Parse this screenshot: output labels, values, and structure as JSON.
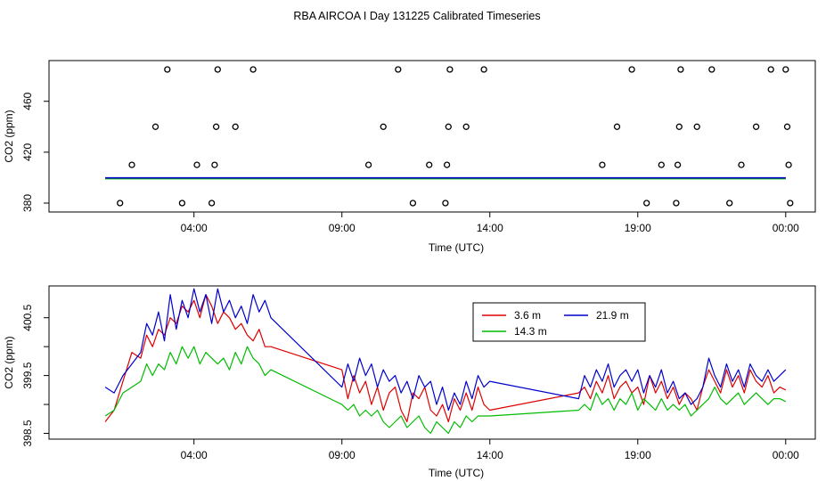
{
  "title": "RBA AIRCOA I  Day 131225  Calibrated Timeseries",
  "chart_data": [
    {
      "type": "scatter+line",
      "xlabel": "Time (UTC)",
      "ylabel": "CO2 (ppm)",
      "xticks": [
        4,
        9,
        14,
        19,
        24
      ],
      "xtick_labels": [
        "04:00",
        "09:00",
        "14:00",
        "19:00",
        "00:00"
      ],
      "xlim": [
        -0.9,
        25.0
      ],
      "yticks": [
        380,
        420,
        460
      ],
      "ytick_labels": [
        "380",
        "420",
        "460"
      ],
      "ylim": [
        373,
        492
      ],
      "points": [
        {
          "x": 1.5,
          "y": 380
        },
        {
          "x": 1.9,
          "y": 410
        },
        {
          "x": 2.7,
          "y": 440
        },
        {
          "x": 3.1,
          "y": 485
        },
        {
          "x": 3.6,
          "y": 380
        },
        {
          "x": 4.1,
          "y": 410
        },
        {
          "x": 4.6,
          "y": 380
        },
        {
          "x": 4.7,
          "y": 410
        },
        {
          "x": 4.75,
          "y": 440
        },
        {
          "x": 4.8,
          "y": 485
        },
        {
          "x": 5.4,
          "y": 440
        },
        {
          "x": 6.0,
          "y": 485
        },
        {
          "x": 9.9,
          "y": 410
        },
        {
          "x": 10.4,
          "y": 440
        },
        {
          "x": 10.9,
          "y": 485
        },
        {
          "x": 11.4,
          "y": 380
        },
        {
          "x": 11.95,
          "y": 410
        },
        {
          "x": 12.5,
          "y": 380
        },
        {
          "x": 12.55,
          "y": 410
        },
        {
          "x": 12.6,
          "y": 440
        },
        {
          "x": 12.65,
          "y": 485
        },
        {
          "x": 13.2,
          "y": 440
        },
        {
          "x": 13.8,
          "y": 485
        },
        {
          "x": 17.8,
          "y": 410
        },
        {
          "x": 18.3,
          "y": 440
        },
        {
          "x": 18.8,
          "y": 485
        },
        {
          "x": 19.3,
          "y": 380
        },
        {
          "x": 19.8,
          "y": 410
        },
        {
          "x": 20.3,
          "y": 380
        },
        {
          "x": 20.35,
          "y": 410
        },
        {
          "x": 20.4,
          "y": 440
        },
        {
          "x": 20.45,
          "y": 485
        },
        {
          "x": 21.0,
          "y": 440
        },
        {
          "x": 21.5,
          "y": 485
        },
        {
          "x": 22.1,
          "y": 380
        },
        {
          "x": 22.5,
          "y": 410
        },
        {
          "x": 23.0,
          "y": 440
        },
        {
          "x": 23.5,
          "y": 485
        },
        {
          "x": 24.0,
          "y": 485
        },
        {
          "x": 24.05,
          "y": 440
        },
        {
          "x": 24.1,
          "y": 410
        },
        {
          "x": 24.15,
          "y": 380
        }
      ],
      "series": [
        {
          "name": "3.6 m",
          "color": "#dd0000",
          "x": [
            1.0,
            24.0
          ],
          "values": [
            399.5,
            399.5
          ]
        },
        {
          "name": "14.3 m",
          "color": "#00bb00",
          "x": [
            1.0,
            24.0
          ],
          "values": [
            399.2,
            399.2
          ]
        },
        {
          "name": "21.9 m",
          "color": "#0000cc",
          "x": [
            1.0,
            24.0
          ],
          "values": [
            399.8,
            399.8
          ]
        }
      ]
    },
    {
      "type": "line",
      "xlabel": "Time (UTC)",
      "ylabel": "CO2 (ppm)",
      "xticks": [
        4,
        9,
        14,
        19,
        24
      ],
      "xtick_labels": [
        "04:00",
        "09:00",
        "14:00",
        "19:00",
        "00:00"
      ],
      "xlim": [
        -0.9,
        25.0
      ],
      "yticks": [
        398.5,
        399.0,
        399.5,
        400.0,
        400.5
      ],
      "ytick_labels": [
        "398.5",
        "",
        "399.5",
        "",
        "400.5"
      ],
      "ylim": [
        398.4,
        401.05
      ],
      "legend": {
        "position": "top-right",
        "entries": [
          "3.6 m",
          "21.9 m",
          "14.3 m"
        ]
      },
      "series": [
        {
          "name": "3.6 m",
          "color": "#dd0000",
          "x": [
            1.0,
            1.3,
            1.6,
            1.9,
            2.2,
            2.4,
            2.6,
            2.8,
            3.0,
            3.2,
            3.4,
            3.6,
            3.8,
            4.0,
            4.2,
            4.4,
            4.6,
            4.8,
            5.0,
            5.2,
            5.4,
            5.6,
            5.8,
            6.0,
            6.2,
            6.4,
            6.6,
            9.0,
            9.2,
            9.4,
            9.6,
            9.8,
            10.0,
            10.2,
            10.4,
            10.6,
            10.8,
            11.0,
            11.2,
            11.4,
            11.6,
            11.8,
            12.0,
            12.2,
            12.4,
            12.6,
            12.8,
            13.0,
            13.2,
            13.4,
            13.6,
            13.8,
            14.0,
            17.0,
            17.2,
            17.4,
            17.6,
            17.8,
            18.0,
            18.2,
            18.4,
            18.6,
            18.8,
            19.0,
            19.2,
            19.4,
            19.6,
            19.8,
            20.0,
            20.2,
            20.4,
            20.6,
            20.8,
            21.0,
            21.2,
            21.4,
            21.6,
            21.8,
            22.0,
            22.2,
            22.4,
            22.6,
            22.8,
            23.0,
            23.2,
            23.4,
            23.6,
            23.8,
            24.0
          ],
          "values": [
            398.7,
            398.9,
            399.4,
            399.9,
            399.8,
            400.2,
            400.0,
            400.3,
            400.2,
            400.5,
            400.4,
            400.7,
            400.6,
            400.8,
            400.5,
            400.9,
            400.7,
            400.4,
            400.6,
            400.5,
            400.3,
            400.4,
            400.2,
            400.1,
            400.3,
            400.0,
            400.0,
            399.6,
            399.1,
            399.5,
            399.2,
            399.4,
            399.0,
            399.3,
            398.9,
            399.2,
            399.3,
            398.9,
            398.7,
            399.2,
            399.1,
            399.3,
            398.9,
            398.8,
            399.0,
            398.7,
            399.1,
            398.9,
            399.2,
            398.9,
            399.3,
            399.0,
            398.9,
            399.2,
            399.3,
            399.1,
            399.4,
            399.2,
            399.5,
            399.1,
            399.3,
            399.4,
            399.2,
            399.3,
            399.0,
            399.5,
            399.2,
            399.4,
            399.1,
            399.3,
            399.0,
            399.2,
            399.1,
            398.9,
            399.3,
            399.6,
            399.4,
            399.2,
            399.6,
            399.3,
            399.5,
            399.2,
            399.6,
            399.4,
            399.3,
            399.5,
            399.2,
            399.3,
            399.25
          ]
        },
        {
          "name": "14.3 m",
          "color": "#00bb00",
          "x": [
            1.0,
            1.3,
            1.6,
            1.9,
            2.2,
            2.4,
            2.6,
            2.8,
            3.0,
            3.2,
            3.4,
            3.6,
            3.8,
            4.0,
            4.2,
            4.4,
            4.6,
            4.8,
            5.0,
            5.2,
            5.4,
            5.6,
            5.8,
            6.0,
            6.2,
            6.4,
            6.6,
            9.0,
            9.2,
            9.4,
            9.6,
            9.8,
            10.0,
            10.2,
            10.4,
            10.6,
            10.8,
            11.0,
            11.2,
            11.4,
            11.6,
            11.8,
            12.0,
            12.2,
            12.4,
            12.6,
            12.8,
            13.0,
            13.2,
            13.4,
            13.6,
            13.8,
            14.0,
            17.0,
            17.2,
            17.4,
            17.6,
            17.8,
            18.0,
            18.2,
            18.4,
            18.6,
            18.8,
            19.0,
            19.2,
            19.4,
            19.6,
            19.8,
            20.0,
            20.2,
            20.4,
            20.6,
            20.8,
            21.0,
            21.2,
            21.4,
            21.6,
            21.8,
            22.0,
            22.2,
            22.4,
            22.6,
            22.8,
            23.0,
            23.2,
            23.4,
            23.6,
            23.8,
            24.0
          ],
          "values": [
            398.8,
            398.9,
            399.2,
            399.3,
            399.4,
            399.7,
            399.5,
            399.7,
            399.6,
            399.9,
            399.7,
            400.0,
            399.8,
            400.0,
            399.7,
            399.9,
            399.8,
            399.7,
            399.8,
            399.6,
            399.9,
            399.7,
            400.0,
            399.8,
            399.7,
            399.5,
            399.6,
            399.0,
            398.9,
            399.0,
            398.8,
            398.9,
            398.8,
            398.9,
            398.7,
            398.6,
            398.7,
            398.8,
            398.6,
            398.7,
            398.8,
            398.6,
            398.5,
            398.7,
            398.6,
            398.5,
            398.7,
            398.6,
            398.8,
            398.7,
            398.8,
            398.8,
            398.8,
            398.9,
            399.0,
            398.9,
            399.2,
            399.0,
            399.1,
            398.9,
            399.1,
            399.0,
            399.2,
            398.9,
            399.1,
            399.0,
            398.9,
            399.1,
            398.9,
            399.0,
            398.9,
            399.0,
            398.8,
            398.9,
            399.0,
            399.1,
            399.3,
            399.1,
            399.0,
            399.1,
            399.2,
            399.0,
            399.1,
            399.2,
            399.1,
            399.0,
            399.1,
            399.1,
            399.05
          ]
        },
        {
          "name": "21.9 m",
          "color": "#0000cc",
          "x": [
            1.0,
            1.3,
            1.6,
            1.9,
            2.2,
            2.4,
            2.6,
            2.8,
            3.0,
            3.2,
            3.4,
            3.6,
            3.8,
            4.0,
            4.2,
            4.4,
            4.6,
            4.8,
            5.0,
            5.2,
            5.4,
            5.6,
            5.8,
            6.0,
            6.2,
            6.4,
            6.6,
            9.0,
            9.2,
            9.4,
            9.6,
            9.8,
            10.0,
            10.2,
            10.4,
            10.6,
            10.8,
            11.0,
            11.2,
            11.4,
            11.6,
            11.8,
            12.0,
            12.2,
            12.4,
            12.6,
            12.8,
            13.0,
            13.2,
            13.4,
            13.6,
            13.8,
            14.0,
            17.0,
            17.2,
            17.4,
            17.6,
            17.8,
            18.0,
            18.2,
            18.4,
            18.6,
            18.8,
            19.0,
            19.2,
            19.4,
            19.6,
            19.8,
            20.0,
            20.2,
            20.4,
            20.6,
            20.8,
            21.0,
            21.2,
            21.4,
            21.6,
            21.8,
            22.0,
            22.2,
            22.4,
            22.6,
            22.8,
            23.0,
            23.2,
            23.4,
            23.6,
            23.8,
            24.0
          ],
          "values": [
            399.3,
            399.2,
            399.5,
            399.7,
            399.9,
            400.4,
            400.2,
            400.6,
            400.1,
            400.9,
            400.3,
            400.8,
            400.5,
            401.0,
            400.6,
            400.9,
            400.4,
            401.0,
            400.6,
            400.8,
            400.5,
            400.7,
            400.4,
            400.9,
            400.6,
            400.8,
            400.5,
            399.3,
            399.7,
            399.4,
            399.8,
            399.5,
            399.7,
            399.3,
            399.6,
            399.4,
            399.5,
            399.2,
            399.4,
            399.1,
            399.5,
            399.3,
            399.4,
            399.0,
            399.3,
            398.9,
            399.2,
            399.0,
            399.4,
            399.1,
            399.5,
            399.3,
            399.4,
            399.1,
            399.5,
            399.3,
            399.6,
            399.4,
            399.7,
            399.3,
            399.5,
            399.6,
            399.4,
            399.6,
            399.2,
            399.5,
            399.3,
            399.6,
            399.2,
            399.4,
            399.1,
            399.2,
            399.0,
            399.1,
            399.3,
            399.8,
            399.5,
            399.3,
            399.7,
            399.4,
            399.6,
            399.3,
            399.7,
            399.5,
            399.4,
            399.6,
            399.4,
            399.5,
            399.6
          ]
        }
      ]
    }
  ]
}
